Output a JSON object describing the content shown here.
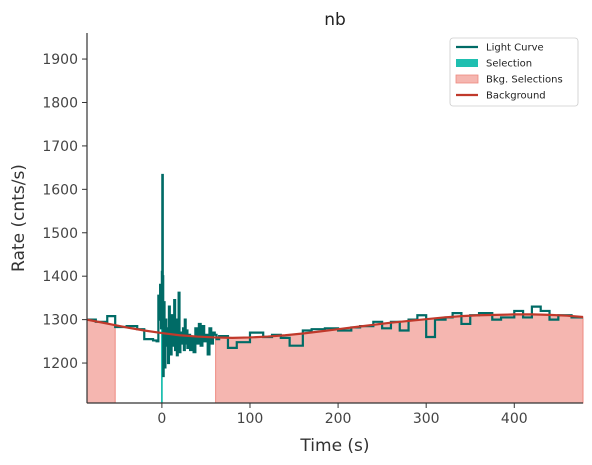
{
  "chart_data": {
    "type": "line",
    "title": "nb",
    "xlabel": "Time (s)",
    "ylabel": "Rate (cnts/s)",
    "xlim": [
      -85,
      478
    ],
    "ylim": [
      1108,
      1960
    ],
    "xticks": [
      0,
      100,
      200,
      300,
      400
    ],
    "yticks": [
      1200,
      1300,
      1400,
      1500,
      1600,
      1700,
      1800,
      1900
    ],
    "grid": false,
    "legend_position": "top-right",
    "legend": [
      {
        "label": "Light Curve",
        "kind": "line",
        "color": "#006b66"
      },
      {
        "label": "Selection",
        "kind": "patch",
        "color": "#1fbfb0"
      },
      {
        "label": "Bkg. Selections",
        "kind": "patch",
        "color": "#f5b6b0"
      },
      {
        "label": "Background",
        "kind": "line",
        "color": "#c0392b"
      }
    ],
    "bkg_selections": [
      [
        -85,
        -53
      ],
      [
        61,
        478
      ]
    ],
    "selection": [
      -1,
      1
    ],
    "light_curve": {
      "x": [
        -85,
        -75,
        -62,
        -53,
        -40,
        -28,
        -20,
        -10,
        -6,
        -4,
        -3,
        -2,
        -1,
        0,
        0.5,
        1,
        1.5,
        2,
        3,
        4,
        5,
        6,
        7,
        8,
        9,
        10,
        11,
        12,
        13,
        14,
        15,
        16,
        17,
        18,
        19,
        20,
        21,
        22,
        23,
        24,
        25,
        26,
        27,
        28,
        29,
        30,
        32,
        34,
        36,
        38,
        40,
        42,
        44,
        46,
        48,
        50,
        52,
        54,
        56,
        58,
        60,
        62,
        65,
        75,
        85,
        100,
        115,
        125,
        135,
        145,
        160,
        170,
        185,
        200,
        215,
        225,
        240,
        250,
        260,
        270,
        280,
        290,
        300,
        310,
        322,
        330,
        340,
        350,
        360,
        375,
        385,
        400,
        410,
        420,
        430,
        440,
        450,
        465,
        478
      ],
      "y": [
        1300,
        1295,
        1308,
        1283,
        1285,
        1278,
        1255,
        1252,
        1250,
        1355,
        1300,
        1380,
        1280,
        1410,
        1633,
        1400,
        1170,
        1340,
        1190,
        1300,
        1240,
        1280,
        1200,
        1330,
        1230,
        1220,
        1310,
        1240,
        1275,
        1345,
        1230,
        1300,
        1218,
        1265,
        1362,
        1225,
        1270,
        1245,
        1260,
        1280,
        1230,
        1300,
        1245,
        1275,
        1235,
        1265,
        1230,
        1260,
        1225,
        1280,
        1245,
        1290,
        1240,
        1285,
        1250,
        1265,
        1220,
        1280,
        1245,
        1270,
        1265,
        1255,
        1262,
        1235,
        1248,
        1270,
        1260,
        1265,
        1258,
        1240,
        1275,
        1278,
        1280,
        1275,
        1282,
        1285,
        1295,
        1280,
        1295,
        1275,
        1300,
        1310,
        1260,
        1300,
        1305,
        1315,
        1290,
        1310,
        1315,
        1300,
        1305,
        1320,
        1305,
        1330,
        1320,
        1300,
        1310,
        1305,
        1305
      ]
    },
    "background": {
      "x": [
        -85,
        -60,
        -40,
        -20,
        0,
        20,
        40,
        60,
        80,
        100,
        120,
        140,
        160,
        180,
        200,
        220,
        240,
        260,
        280,
        300,
        320,
        340,
        360,
        380,
        400,
        420,
        440,
        460,
        478
      ],
      "y": [
        1300,
        1290,
        1282,
        1275,
        1269,
        1264,
        1261,
        1259,
        1258,
        1259,
        1261,
        1264,
        1268,
        1273,
        1278,
        1283,
        1288,
        1293,
        1297,
        1301,
        1305,
        1308,
        1310,
        1311,
        1312,
        1312,
        1311,
        1309,
        1306
      ]
    }
  }
}
